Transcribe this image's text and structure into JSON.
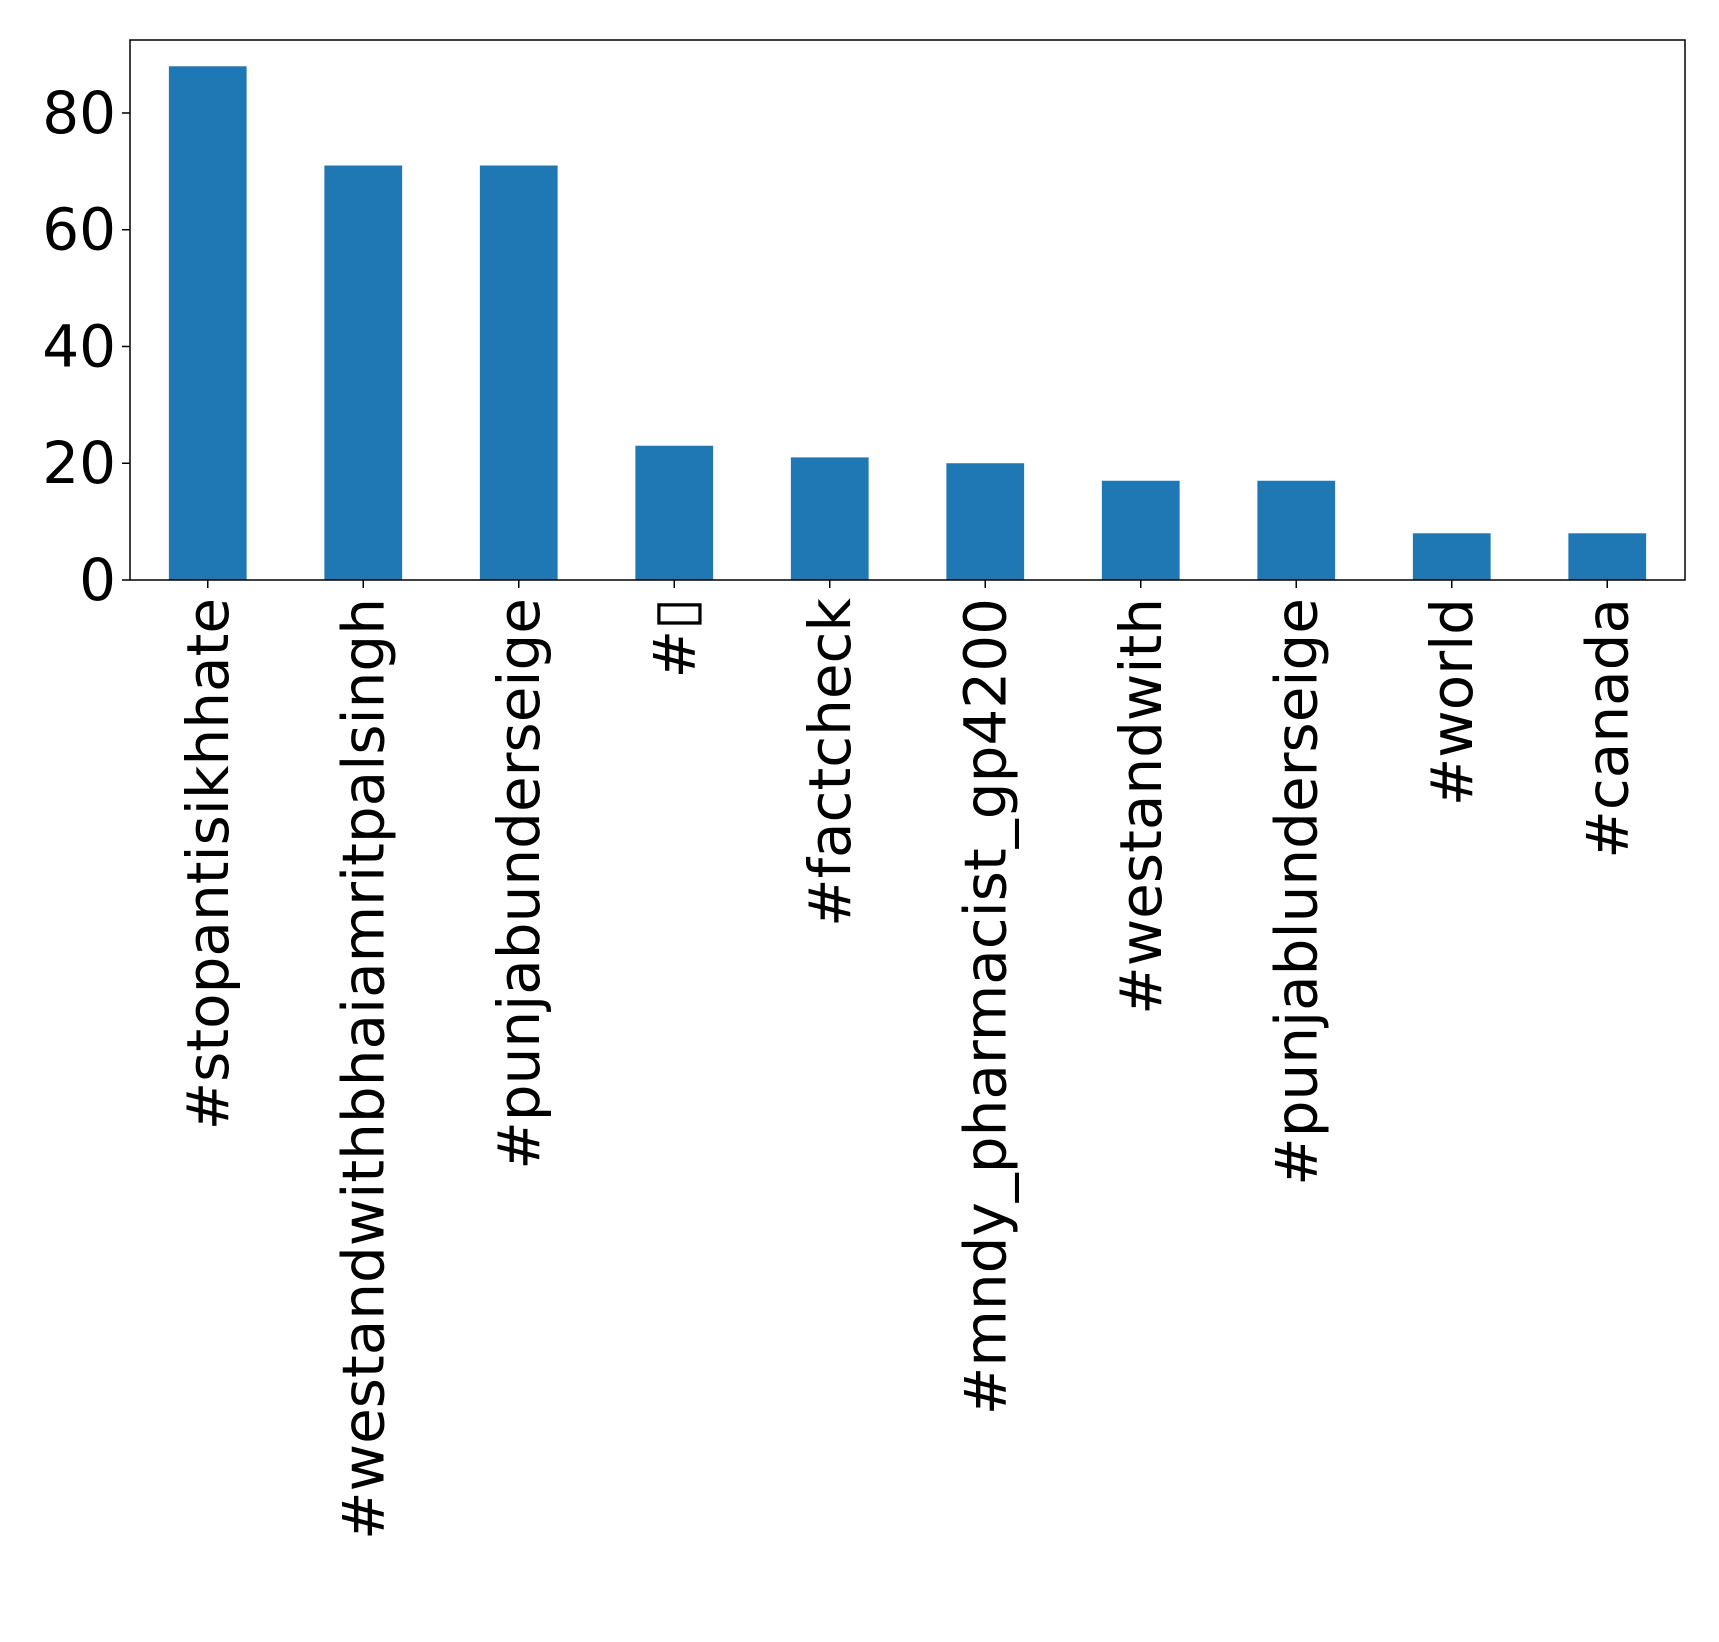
{
  "chart_data": {
    "type": "bar",
    "title": "",
    "xlabel": "",
    "ylabel": "",
    "categories": [
      "#stopantisikhhate",
      "#westandwithbhaiamritpalsingh",
      "#punjabunderseige",
      "#▯",
      "#factcheck",
      "#mndy_pharmacist_gp4200",
      "#westandwith",
      "#punjablunderseige",
      "#world",
      "#canada"
    ],
    "values": [
      88,
      71,
      71,
      23,
      21,
      20,
      17,
      17,
      8,
      8
    ],
    "ylim": [
      0,
      92.5
    ],
    "yticks": [
      0,
      20,
      40,
      60,
      80
    ],
    "ytick_labels": [
      "0",
      "20",
      "40",
      "60",
      "80"
    ],
    "bar_color": "#1f77b4",
    "grid": false,
    "legend": "none"
  }
}
